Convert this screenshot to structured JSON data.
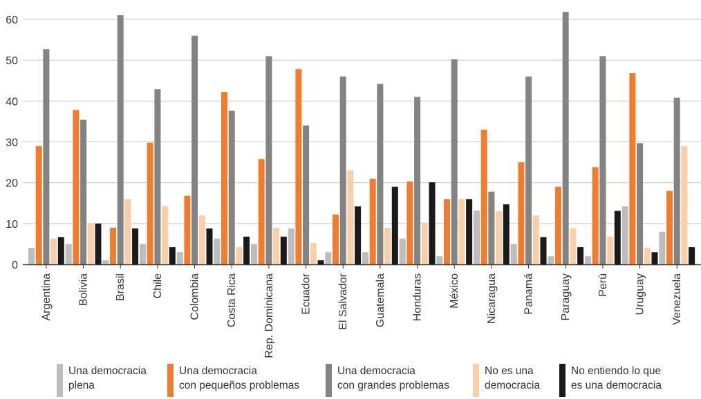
{
  "colors": {
    "plena": "#bdbdbd",
    "pequenos": "#ef7d2d",
    "grandes": "#838383",
    "no_es": "#f8cfa8",
    "no_entiendo": "#1a1a1a",
    "axis": "#333333",
    "grid": "#c8c8c8"
  },
  "chart_data": {
    "type": "bar",
    "title": "",
    "xlabel": "",
    "ylabel": "",
    "ylim": [
      0,
      60
    ],
    "yticks": [
      0,
      10,
      20,
      30,
      40,
      50,
      60
    ],
    "grid": true,
    "legend_position": "bottom",
    "categories": [
      "Argentina",
      "Bolivia",
      "Brasil",
      "Chile",
      "Colombia",
      "Costa Rica",
      "Rep. Dominicana",
      "Ecuador",
      "El Salvador",
      "Guatemala",
      "Honduras",
      "México",
      "Nicaragua",
      "Panamá",
      "Paraguay",
      "Perú",
      "Uruguay",
      "Venezuela"
    ],
    "series": [
      {
        "key": "plena",
        "name": "Una democracia plena",
        "values": [
          4,
          5,
          1,
          5,
          3,
          6.3,
          5,
          8.8,
          3,
          3,
          6.3,
          2,
          13.2,
          5,
          2,
          2,
          14.2,
          8
        ]
      },
      {
        "key": "pequenos",
        "name": "Una democracia con pequeños problemas",
        "values": [
          29,
          37.8,
          9,
          29.8,
          16.8,
          42.2,
          25.8,
          47.8,
          12.2,
          21,
          20.3,
          16,
          33,
          25,
          19,
          23.8,
          46.8,
          18
        ]
      },
      {
        "key": "grandes",
        "name": "Una democracia con grandes problemas",
        "values": [
          52.7,
          35.4,
          61,
          42.9,
          56,
          37.6,
          51,
          34,
          46,
          44.2,
          41,
          50.2,
          17.8,
          46,
          61.8,
          51,
          29.7,
          40.8
        ]
      },
      {
        "key": "no_es",
        "name": "No es una democracia",
        "values": [
          6.3,
          10,
          16,
          14.3,
          12,
          4.2,
          9,
          5.2,
          23,
          9,
          10.2,
          16,
          13,
          12,
          8.8,
          6.8,
          4,
          29
        ]
      },
      {
        "key": "no_entiendo",
        "name": "No entiendo lo que es una democracia",
        "values": [
          6.7,
          10,
          8.8,
          4.2,
          8.8,
          6.8,
          6.8,
          1,
          14.2,
          19,
          20.1,
          16,
          14.7,
          6.7,
          4.2,
          13.1,
          3,
          4.2
        ]
      }
    ]
  },
  "legend": [
    {
      "key": "plena",
      "lines": [
        "Una democracia",
        "plena"
      ]
    },
    {
      "key": "pequenos",
      "lines": [
        "Una democracia",
        "con pequeños problemas"
      ]
    },
    {
      "key": "grandes",
      "lines": [
        "Una democracia",
        "con grandes problemas"
      ]
    },
    {
      "key": "no_es",
      "lines": [
        "No es una",
        "democracia"
      ]
    },
    {
      "key": "no_entiendo",
      "lines": [
        "No entiendo lo que",
        "es una democracia"
      ]
    }
  ]
}
